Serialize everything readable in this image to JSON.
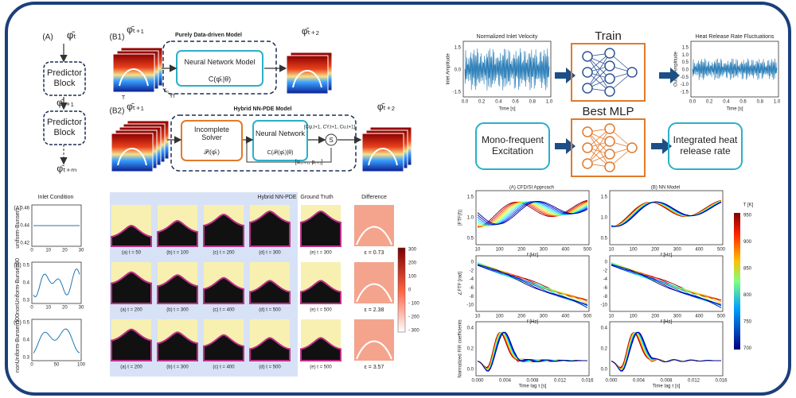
{
  "panel_a": {
    "label": "(A)",
    "phi_t": "φ̄ₜ",
    "block_1": "Predictor Block",
    "phi_t1": "φ̄ₜ₊₁",
    "block_2": "Predictor Block",
    "phi_tm": "φ̄ₜ₊ₘ"
  },
  "panel_b1": {
    "label": "(B1)",
    "title": "Purely Data-driven Model",
    "input": "φ̄ₜ₊₁",
    "nn": "Neural Network Model",
    "nn_formula": "C(φ̄ₜ|θ)",
    "output": "φ̄ₜ₊₂",
    "axis_labels": [
      "T",
      "Yₒ",
      "Yf"
    ]
  },
  "panel_b2": {
    "label": "(B2)",
    "title": "Hybrid NN-PDE Model",
    "input": "φ̄ₜ₊₁",
    "solver": "Incomplete Solver",
    "solver_formula": "𝒫ᵢ(φ̄ₜ)",
    "nn": "Neural Network",
    "nn_formula": "C(𝒫ᵢ(φ̄ₜ)|θ)",
    "nn_out": "[Cψ,t+1, CY,t+1, Cu,t+1]",
    "feedback": "[uᵢ,ₜ₊₁, pₜ₊₁]",
    "sum": "S",
    "output": "φ̄ₜ₊₂"
  },
  "results": {
    "col_inlet": "Inlet Condition",
    "col_model": "Hybrid NN-PDE",
    "col_truth": "Ground Truth",
    "col_diff": "Difference",
    "rows": [
      {
        "label": "(A)",
        "name": "uniform-Bunsen",
        "yticks": [
          "0.46",
          "0.44",
          "0.42"
        ],
        "xticks": [
          "0",
          "10",
          "20",
          "30"
        ],
        "captions": [
          "(a) t = 50",
          "(b) t = 100",
          "(c) t = 200",
          "(d) t = 300",
          "(e) t = 300"
        ],
        "error": "ε = 0.73"
      },
      {
        "label": "(B)",
        "name": "nonUniform-Bunsen30",
        "yticks": [
          "0.5",
          "0.4",
          "0.3"
        ],
        "xticks": [
          "0",
          "10",
          "20",
          "30"
        ],
        "captions": [
          "(a) t = 200",
          "(b) t = 300",
          "(c) t = 400",
          "(d) t = 500",
          "(e) t = 500"
        ],
        "error": "ε = 2.38"
      },
      {
        "label": "(C)",
        "name": "nonUniform-Bunsen100",
        "yticks": [
          "0.5",
          "0.4",
          "0.3"
        ],
        "xticks": [
          "0",
          "50",
          "100"
        ],
        "captions": [
          "(a) t = 200",
          "(b) t = 300",
          "(c) t = 400",
          "(d) t = 500",
          "(e) t = 500"
        ],
        "error": "ε = 3.57"
      }
    ],
    "colorbar_ticks": [
      "300",
      "200",
      "100",
      "0",
      "- 100",
      "- 200",
      "- 300"
    ]
  },
  "pipeline": {
    "train": "Train",
    "best": "Best MLP",
    "inlet": {
      "title": "Normalized Inlet Velocity",
      "ylabel": "Inlet Amplitude",
      "xlabel": "Time [s]",
      "yticks": [
        "1.5",
        "0.0",
        "-1.5"
      ],
      "xticks": [
        "0.0",
        "0.2",
        "0.4",
        "0.6",
        "0.8",
        "1.0"
      ]
    },
    "outlet": {
      "title": "Heat Release Rate Fluctuations",
      "ylabel": "Outlet Amplitude",
      "xlabel": "Time [s]",
      "yticks": [
        "1.5",
        "1.0",
        "0.5",
        "0.0",
        "-0.5",
        "-1.0",
        "-1.5"
      ],
      "xticks": [
        "0.0",
        "0.2",
        "0.4",
        "0.6",
        "0.8",
        "1.0"
      ]
    },
    "excitation": "Mono-frequent Excitation",
    "output": "Integrated heat release rate"
  },
  "ftf": {
    "title_a": "(A) CFD/SI Approach",
    "title_b": "(B) NN Model",
    "gain_label": "|FTF(f)|",
    "phase_label": "∠FTF [rad]",
    "impulse_label": "Normalized FIR coefficients",
    "freq_label": "f [Hz]",
    "lag_label": "Time lag τ [s]",
    "gain_yticks": [
      "1.5",
      "1.0",
      "0.5"
    ],
    "phase_yticks": [
      "0",
      "-2",
      "-4",
      "-6",
      "-8",
      "-10"
    ],
    "freq_xticks": [
      "10",
      "100",
      "200",
      "300",
      "400",
      "500"
    ],
    "impulse_yticks": [
      "0.4",
      "0.2",
      "0.0"
    ],
    "lag_xticks": [
      "0.000",
      "0.004",
      "0.008",
      "0.012",
      "0.016"
    ],
    "colorbar_title": "T [K]",
    "colorbar_ticks": [
      "950",
      "900",
      "850",
      "800",
      "750",
      "700"
    ]
  }
}
